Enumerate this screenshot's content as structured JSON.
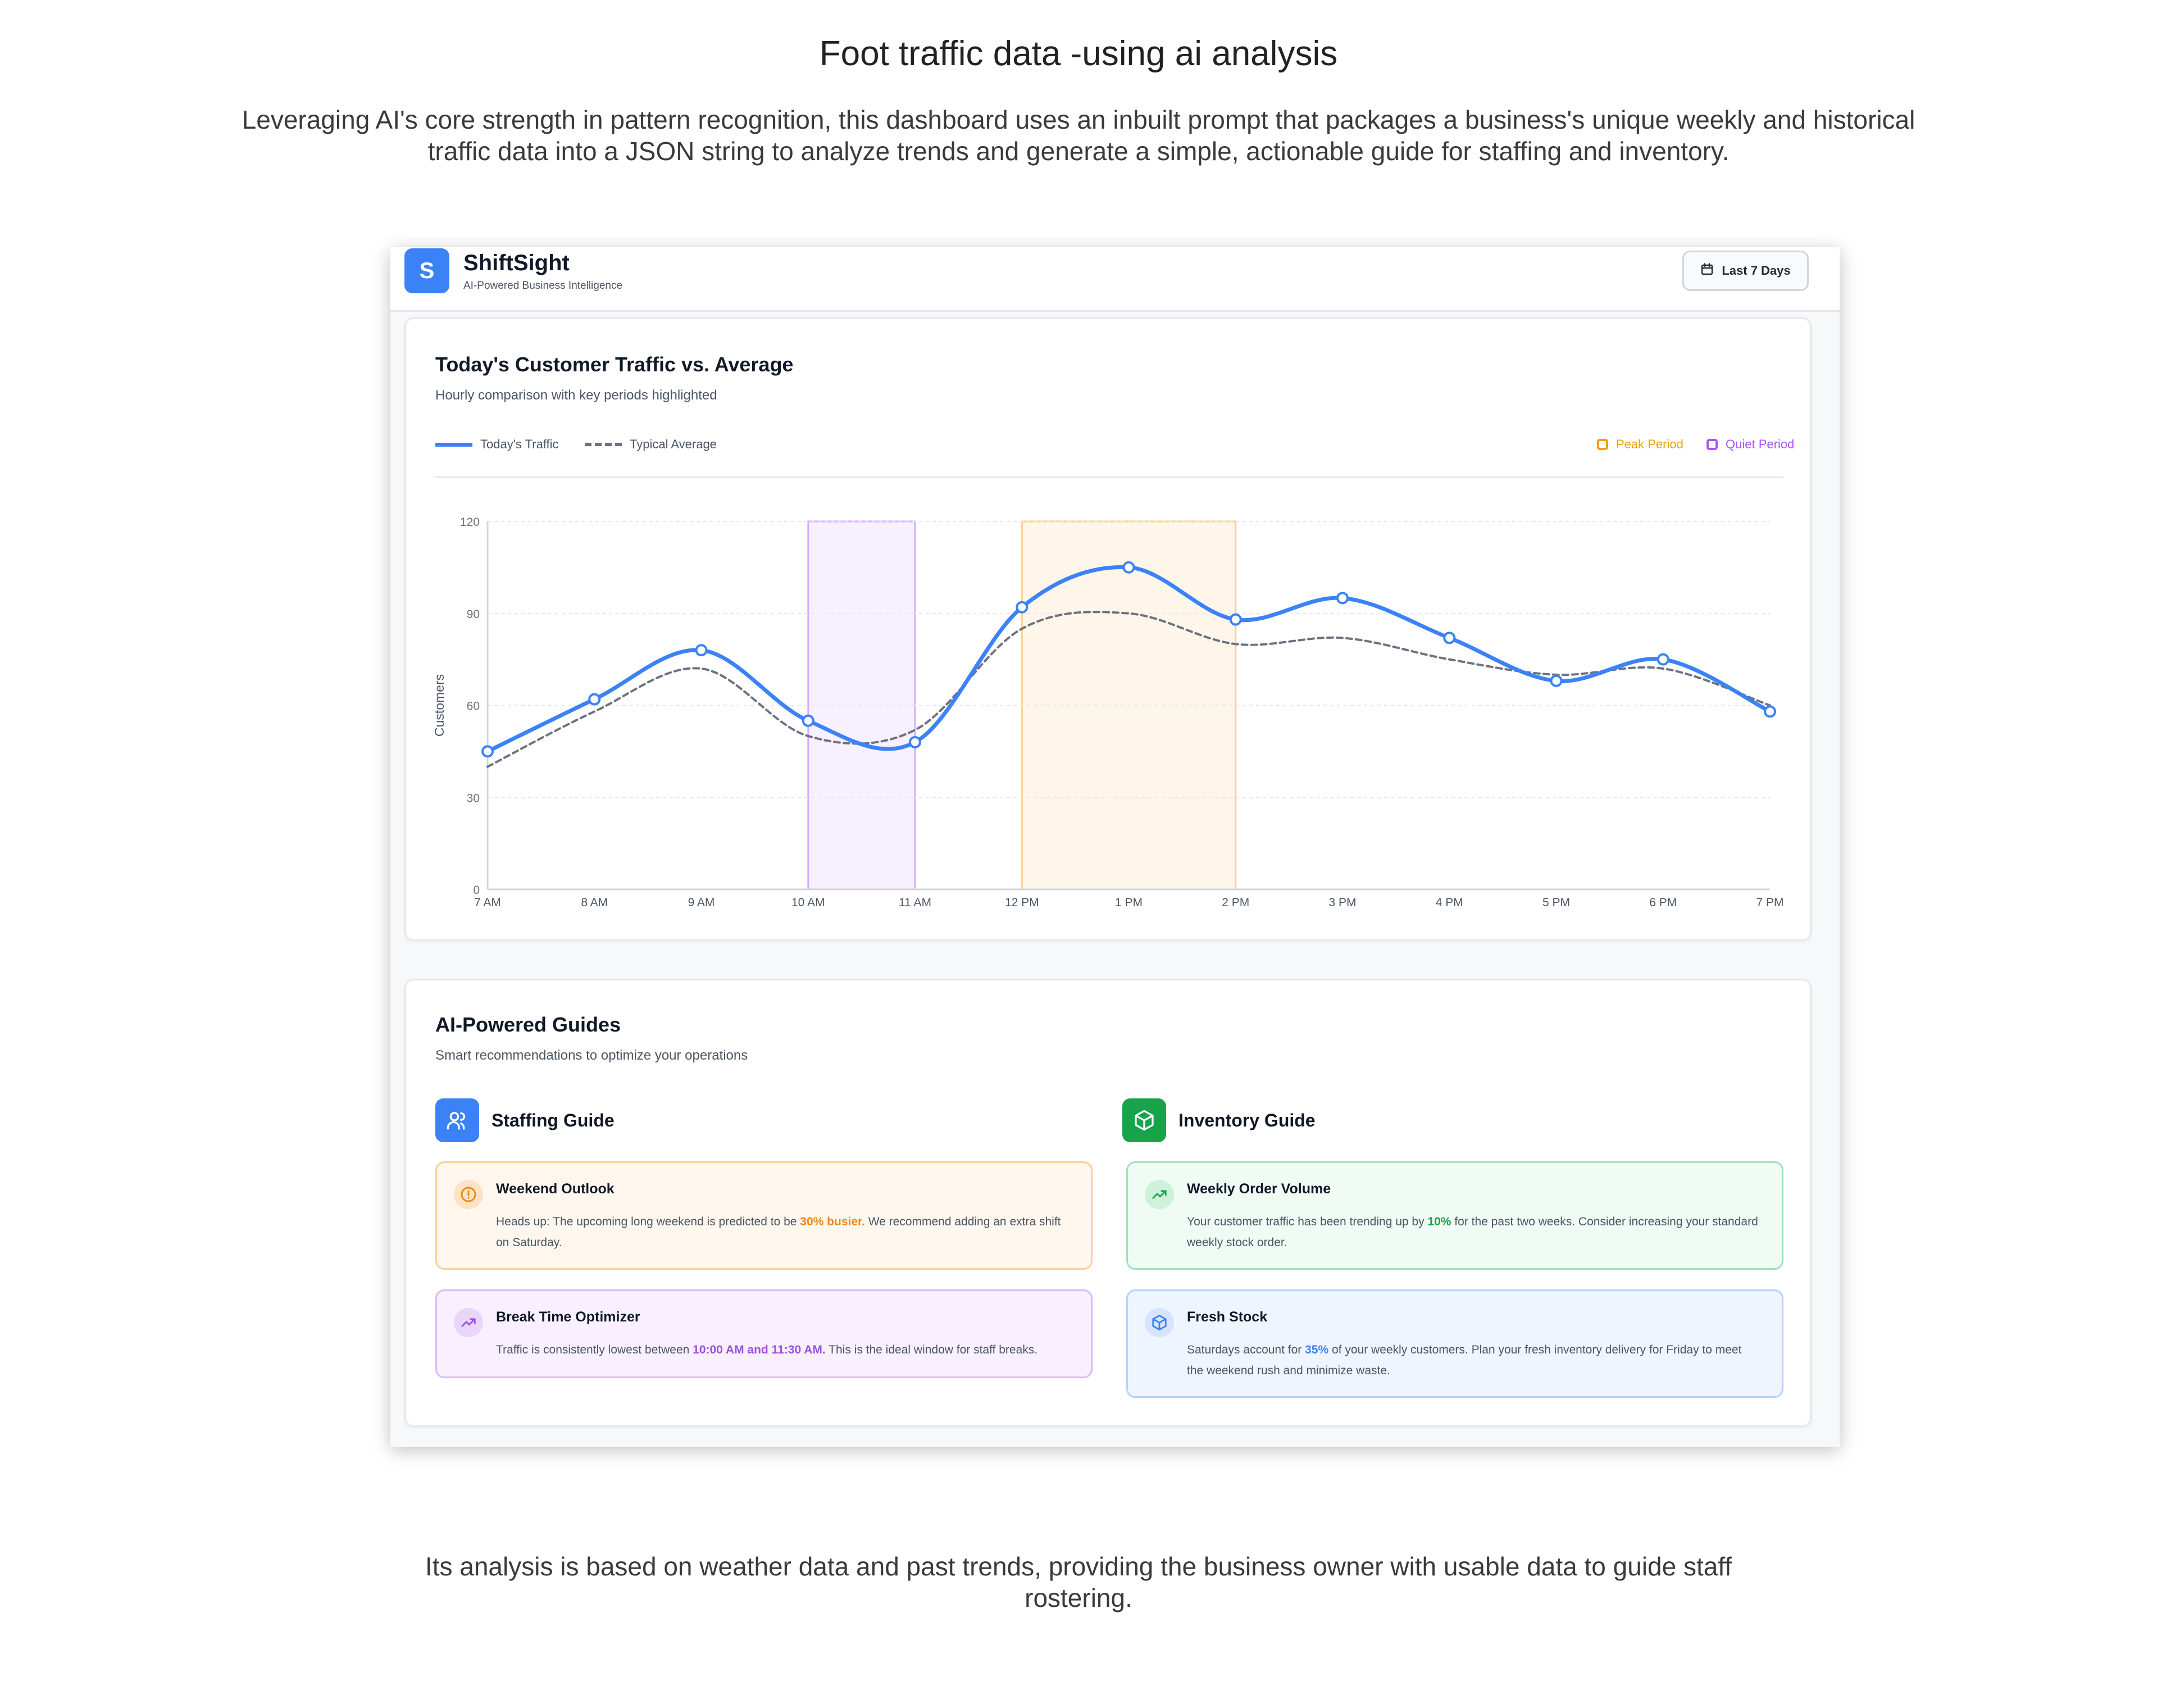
{
  "page": {
    "title": "Foot traffic data -using ai analysis",
    "intro": "Leveraging AI's core strength in pattern recognition, this dashboard uses an inbuilt prompt that packages a business's unique weekly and historical traffic data into a JSON string to analyze trends and generate a simple, actionable guide for staffing and inventory.",
    "outro": "Its analysis is based on weather data and past trends, providing the business owner with usable data to guide staff rostering."
  },
  "app": {
    "logo_letter": "S",
    "name": "ShiftSight",
    "tagline": "AI-Powered Business Intelligence",
    "date_range_label": "Last 7 Days"
  },
  "chart_card": {
    "title": "Today's Customer Traffic vs. Average",
    "subtitle": "Hourly comparison with key periods highlighted",
    "legend": {
      "today": "Today's Traffic",
      "average": "Typical Average",
      "peak": "Peak Period",
      "quiet": "Quiet Period"
    }
  },
  "chart_data": {
    "type": "line",
    "x": [
      "7 AM",
      "8 AM",
      "9 AM",
      "10 AM",
      "11 AM",
      "12 PM",
      "1 PM",
      "2 PM",
      "3 PM",
      "4 PM",
      "5 PM",
      "6 PM",
      "7 PM"
    ],
    "series": [
      {
        "name": "Today's Traffic",
        "values": [
          45,
          62,
          78,
          55,
          48,
          92,
          105,
          88,
          95,
          82,
          68,
          75,
          58
        ],
        "color": "#3b82f6",
        "style": "solid",
        "markers": true
      },
      {
        "name": "Typical Average",
        "values": [
          40,
          58,
          72,
          50,
          52,
          85,
          90,
          80,
          82,
          75,
          70,
          72,
          60
        ],
        "color": "#6b7280",
        "style": "dashed",
        "markers": false
      }
    ],
    "ylabel": "Customers",
    "xlabel": "",
    "ylim": [
      0,
      120
    ],
    "yticks": [
      0,
      30,
      60,
      90,
      120
    ],
    "highlights": [
      {
        "name": "Quiet Period",
        "from": "10 AM",
        "to": "11 AM",
        "color": "#a855f7"
      },
      {
        "name": "Peak Period",
        "from": "12 PM",
        "to": "2 PM",
        "color": "#f59e0b"
      }
    ],
    "grid": true,
    "legend_position": "top"
  },
  "guides": {
    "title": "AI-Powered Guides",
    "subtitle": "Smart recommendations to optimize your operations",
    "staffing": {
      "label": "Staffing Guide",
      "icon": "users-icon",
      "tips": [
        {
          "title": "Weekend Outlook",
          "icon": "alert-circle-icon",
          "text_before": "Heads up: The upcoming long weekend is predicted to be ",
          "highlight": "30% busier.",
          "text_after": " We recommend adding an extra shift on Saturday."
        },
        {
          "title": "Break Time Optimizer",
          "icon": "trending-up-icon",
          "text_before": "Traffic is consistently lowest between ",
          "highlight": "10:00 AM and 11:30 AM.",
          "text_after": " This is the ideal window for staff breaks."
        }
      ]
    },
    "inventory": {
      "label": "Inventory Guide",
      "icon": "box-icon",
      "tips": [
        {
          "title": "Weekly Order Volume",
          "icon": "trending-up-icon",
          "text_before": "Your customer traffic has been trending up by ",
          "highlight": "10%",
          "text_after": " for the past two weeks. Consider increasing your standard weekly stock order."
        },
        {
          "title": "Fresh Stock",
          "icon": "box-icon",
          "text_before": "Saturdays account for ",
          "highlight": "35%",
          "text_after": " of your weekly customers. Plan your fresh inventory delivery for Friday to meet the weekend rush and minimize waste."
        }
      ]
    }
  },
  "colors": {
    "accent": "#3b82f6",
    "peak": "#f59e0b",
    "quiet": "#a855f7",
    "inventory": "#16a34a"
  }
}
